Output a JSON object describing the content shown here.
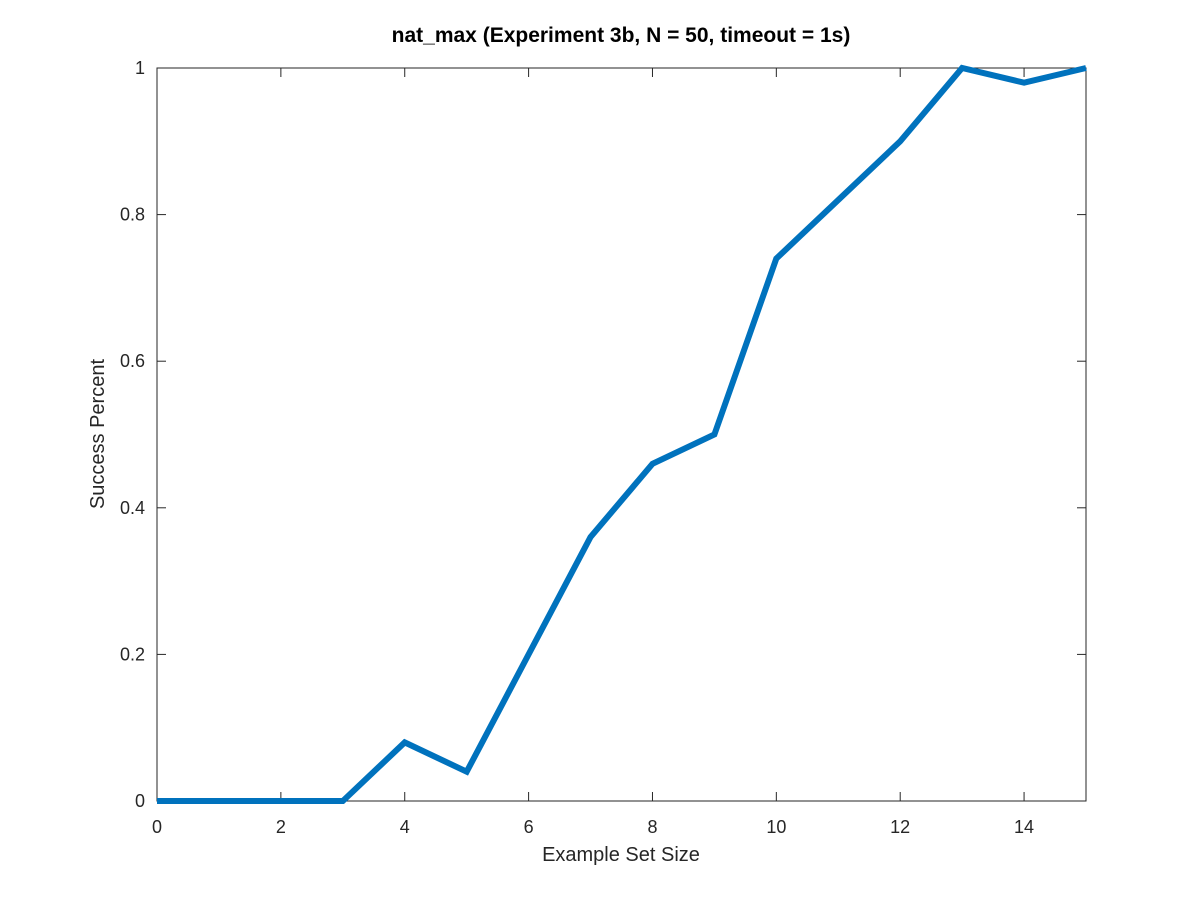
{
  "chart_data": {
    "type": "line",
    "title": "nat_max (Experiment 3b, N = 50, timeout = 1s)",
    "xlabel": "Example Set Size",
    "ylabel": "Success Percent",
    "xlim": [
      0,
      15
    ],
    "ylim": [
      0,
      1
    ],
    "xticks": [
      0,
      2,
      4,
      6,
      8,
      10,
      12,
      14
    ],
    "yticks": [
      0,
      0.2,
      0.4,
      0.6,
      0.8,
      1
    ],
    "xtick_labels": [
      "0",
      "2",
      "4",
      "6",
      "8",
      "10",
      "12",
      "14"
    ],
    "ytick_labels": [
      "0",
      "0.2",
      "0.4",
      "0.6",
      "0.8",
      "1"
    ],
    "grid": false,
    "series": [
      {
        "color": "#0072BD",
        "x": [
          0,
          1,
          2,
          3,
          4,
          5,
          6,
          7,
          8,
          9,
          10,
          11,
          12,
          13,
          14,
          15
        ],
        "y": [
          0,
          0,
          0,
          0,
          0.08,
          0.04,
          0.2,
          0.36,
          0.46,
          0.5,
          0.74,
          0.82,
          0.9,
          1.0,
          0.98,
          1.0
        ]
      }
    ]
  }
}
